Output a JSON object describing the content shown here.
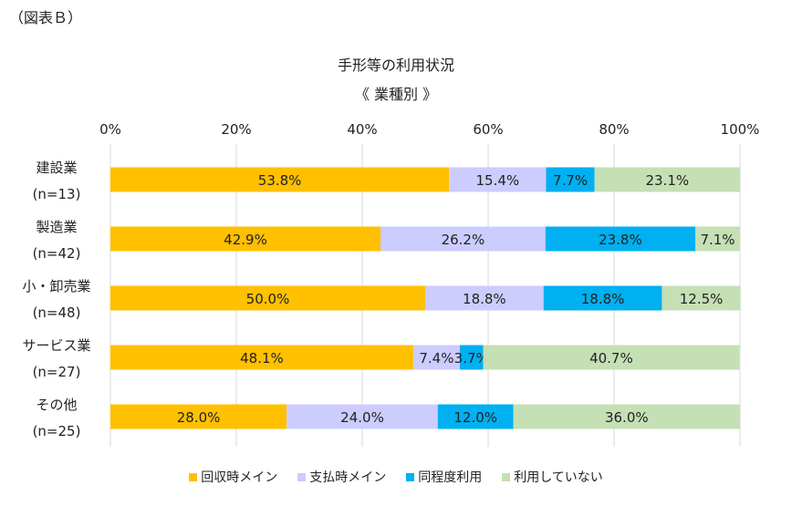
{
  "figure_label": "（図表Ｂ）",
  "chart_data": {
    "type": "bar",
    "orientation": "horizontal-stacked-100",
    "title": "手形等の利用状況",
    "subtitle": "《 業種別 》",
    "xlim": [
      0,
      100
    ],
    "x_ticks": [
      "0%",
      "20%",
      "40%",
      "60%",
      "80%",
      "100%"
    ],
    "categories": [
      {
        "name": "建設業",
        "n": "(n=13)"
      },
      {
        "name": "製造業",
        "n": "(n=42)"
      },
      {
        "name": "小・卸売業",
        "n": "(n=48)"
      },
      {
        "name": "サービス業",
        "n": "(n=27)"
      },
      {
        "name": "その他",
        "n": "(n=25)"
      }
    ],
    "series": [
      {
        "name": "回収時メイン",
        "color": "#FFC000",
        "values": [
          53.8,
          42.9,
          50.0,
          48.1,
          28.0
        ],
        "labels": [
          "53.8%",
          "42.9%",
          "50.0%",
          "48.1%",
          "28.0%"
        ]
      },
      {
        "name": "支払時メイン",
        "color": "#CCCCFF",
        "values": [
          15.4,
          26.2,
          18.8,
          7.4,
          24.0
        ],
        "labels": [
          "15.4%",
          "26.2%",
          "18.8%",
          "7.4%",
          "24.0%"
        ]
      },
      {
        "name": "同程度利用",
        "color": "#00B0F0",
        "values": [
          7.7,
          23.8,
          18.8,
          3.7,
          12.0
        ],
        "labels": [
          "7.7%",
          "23.8%",
          "18.8%",
          "3.7%",
          "12.0%"
        ]
      },
      {
        "name": "利用していない",
        "color": "#C5E0B4",
        "values": [
          23.1,
          7.1,
          12.5,
          40.7,
          36.0
        ],
        "labels": [
          "23.1%",
          "7.1%",
          "12.5%",
          "40.7%",
          "36.0%"
        ]
      }
    ],
    "legend_position": "bottom",
    "grid": true
  }
}
